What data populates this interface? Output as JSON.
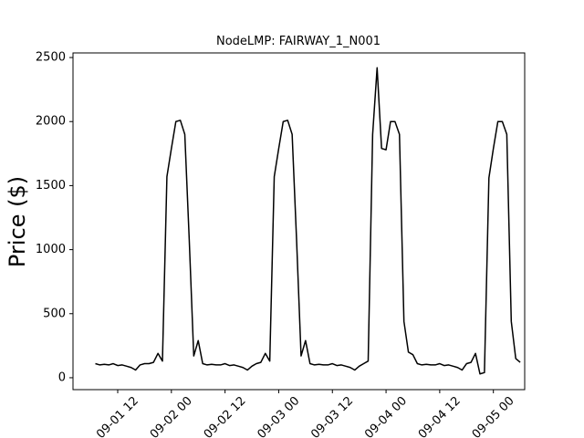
{
  "chart_data": {
    "type": "line",
    "title": "NodeLMP: FAIRWAY_1_N001",
    "y_label": "Price ($)",
    "x": [
      "09-01 07",
      "09-01 08",
      "09-01 09",
      "09-01 10",
      "09-01 11",
      "09-01 12",
      "09-01 13",
      "09-01 14",
      "09-01 15",
      "09-01 16",
      "09-01 17",
      "09-01 18",
      "09-01 19",
      "09-01 20",
      "09-01 21",
      "09-01 22",
      "09-01 23",
      "09-02 00",
      "09-02 01",
      "09-02 02",
      "09-02 03",
      "09-02 04",
      "09-02 05",
      "09-02 06",
      "09-02 07",
      "09-02 08",
      "09-02 09",
      "09-02 10",
      "09-02 11",
      "09-02 12",
      "09-02 13",
      "09-02 14",
      "09-02 15",
      "09-02 16",
      "09-02 17",
      "09-02 18",
      "09-02 19",
      "09-02 20",
      "09-02 21",
      "09-02 22",
      "09-02 23",
      "09-03 00",
      "09-03 01",
      "09-03 02",
      "09-03 03",
      "09-03 04",
      "09-03 05",
      "09-03 06",
      "09-03 07",
      "09-03 08",
      "09-03 09",
      "09-03 10",
      "09-03 11",
      "09-03 12",
      "09-03 13",
      "09-03 14",
      "09-03 15",
      "09-03 16",
      "09-03 17",
      "09-03 18",
      "09-03 19",
      "09-03 20",
      "09-03 21",
      "09-03 22",
      "09-03 23",
      "09-04 00",
      "09-04 01",
      "09-04 02",
      "09-04 03",
      "09-04 04",
      "09-04 05",
      "09-04 06",
      "09-04 07",
      "09-04 08",
      "09-04 09",
      "09-04 10",
      "09-04 11",
      "09-04 12",
      "09-04 13",
      "09-04 14",
      "09-04 15",
      "09-04 16",
      "09-04 17",
      "09-04 18",
      "09-04 19",
      "09-04 20",
      "09-04 21",
      "09-04 22",
      "09-04 23",
      "09-05 00",
      "09-05 01",
      "09-05 02",
      "09-05 03",
      "09-05 04",
      "09-05 05",
      "09-05 06"
    ],
    "series": [
      {
        "color": "#000000",
        "values": [
          110,
          100,
          105,
          100,
          110,
          95,
          100,
          90,
          80,
          60,
          100,
          110,
          110,
          120,
          190,
          130,
          1570,
          1790,
          2000,
          2010,
          1900,
          1070,
          170,
          290,
          110,
          100,
          105,
          100,
          100,
          110,
          95,
          100,
          90,
          80,
          60,
          90,
          110,
          120,
          190,
          130,
          1570,
          1790,
          2000,
          2010,
          1900,
          1070,
          170,
          290,
          110,
          100,
          105,
          100,
          100,
          110,
          95,
          100,
          90,
          80,
          60,
          90,
          110,
          130,
          1900,
          2420,
          1790,
          1780,
          2000,
          2000,
          1900,
          440,
          200,
          180,
          110,
          100,
          105,
          100,
          100,
          110,
          95,
          100,
          90,
          80,
          60,
          110,
          120,
          190,
          30,
          40,
          1560,
          1790,
          2000,
          2000,
          1900,
          440,
          150,
          120
        ]
      }
    ],
    "xlim": [
      "09-01 02",
      "09-05 07"
    ],
    "xticks": [
      "09-01 12",
      "09-02 00",
      "09-02 12",
      "09-03 00",
      "09-03 12",
      "09-04 00",
      "09-04 12",
      "09-05 00"
    ],
    "ylim": [
      -93,
      2536
    ],
    "yticks": [
      0,
      500,
      1000,
      1500,
      2000,
      2500
    ]
  }
}
